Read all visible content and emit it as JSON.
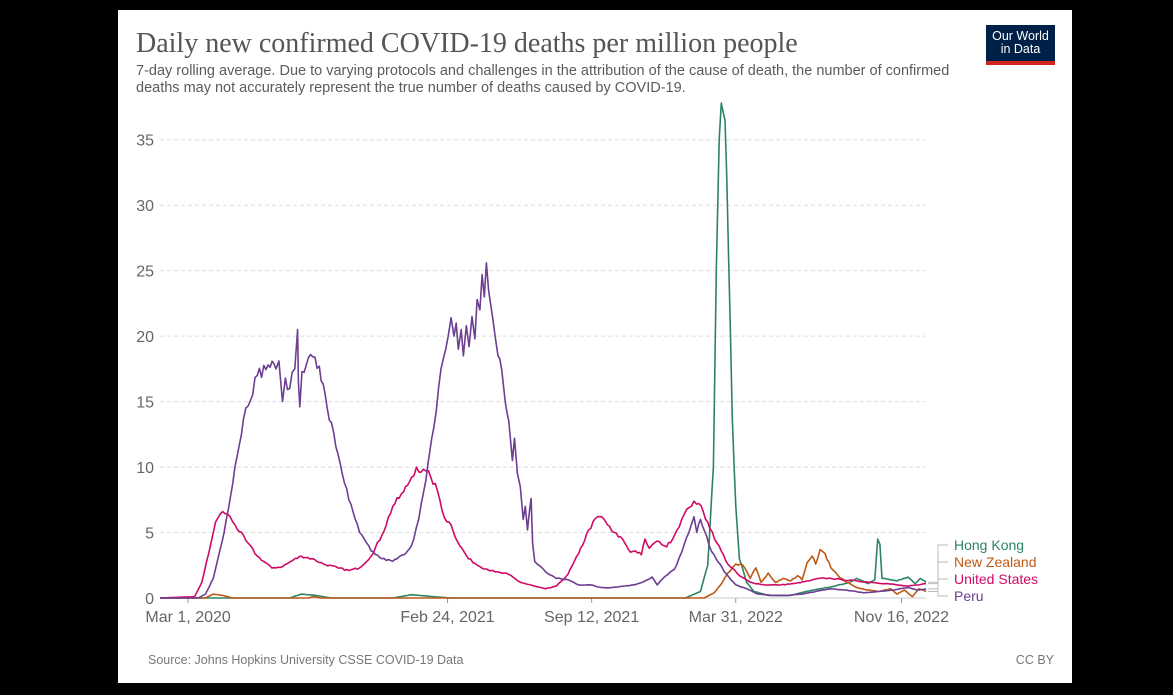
{
  "title": "Daily new confirmed COVID-19 deaths per million people",
  "subtitle": "7-day rolling average. Due to varying protocols and challenges in the attribution of the cause of death, the number of confirmed deaths may not accurately represent the true number of deaths caused by COVID-19.",
  "logo": {
    "line1": "Our World",
    "line2": "in Data",
    "bg_color": "#002147",
    "accent_color": "#ce261e"
  },
  "footer": {
    "source": "Source: Johns Hopkins University CSSE COVID-19 Data",
    "license": "CC BY"
  },
  "chart_data": {
    "type": "line",
    "title": "Daily new confirmed COVID-19 deaths per million people",
    "xlabel": "",
    "ylabel": "",
    "ylim": [
      0,
      37.5
    ],
    "xlim": [
      "2020-01-22",
      "2022-12-20"
    ],
    "y_ticks": [
      0,
      5,
      10,
      15,
      20,
      25,
      30,
      35
    ],
    "x_tick_labels": [
      "Mar 1, 2020",
      "Feb 24, 2021",
      "Sep 12, 2021",
      "Mar 31, 2022",
      "Nov 16, 2022"
    ],
    "x_tick_dates": [
      "2020-03-01",
      "2021-02-24",
      "2021-09-12",
      "2022-03-31",
      "2022-11-16"
    ],
    "grid": "horizontal dashed",
    "legend": "right, end-of-line labels",
    "series": [
      {
        "name": "Hong Kong",
        "color": "#2c8465",
        "points": [
          [
            "2020-01-22",
            0
          ],
          [
            "2020-07-20",
            0
          ],
          [
            "2020-08-05",
            0.3
          ],
          [
            "2020-08-25",
            0.2
          ],
          [
            "2020-09-15",
            0
          ],
          [
            "2020-12-10",
            0
          ],
          [
            "2021-01-05",
            0.25
          ],
          [
            "2021-02-05",
            0.1
          ],
          [
            "2021-03-01",
            0
          ],
          [
            "2022-01-20",
            0
          ],
          [
            "2022-02-10",
            0.5
          ],
          [
            "2022-02-20",
            2.5
          ],
          [
            "2022-02-28",
            10
          ],
          [
            "2022-03-04",
            25
          ],
          [
            "2022-03-08",
            35
          ],
          [
            "2022-03-11",
            37.8
          ],
          [
            "2022-03-16",
            36.5
          ],
          [
            "2022-03-21",
            26
          ],
          [
            "2022-03-26",
            14
          ],
          [
            "2022-03-31",
            7
          ],
          [
            "2022-04-05",
            3
          ],
          [
            "2022-04-15",
            1.2
          ],
          [
            "2022-04-25",
            0.5
          ],
          [
            "2022-05-15",
            0.2
          ],
          [
            "2022-06-15",
            0.2
          ],
          [
            "2022-07-15",
            0.6
          ],
          [
            "2022-08-15",
            0.9
          ],
          [
            "2022-09-05",
            1.2
          ],
          [
            "2022-09-15",
            1.5
          ],
          [
            "2022-10-01",
            1.1
          ],
          [
            "2022-10-10",
            1.4
          ],
          [
            "2022-10-14",
            4.5
          ],
          [
            "2022-10-17",
            4.1
          ],
          [
            "2022-10-20",
            1.5
          ],
          [
            "2022-11-10",
            1.3
          ],
          [
            "2022-11-25",
            1.6
          ],
          [
            "2022-12-05",
            1.1
          ],
          [
            "2022-12-12",
            1.5
          ],
          [
            "2022-12-20",
            1.2
          ]
        ]
      },
      {
        "name": "New Zealand",
        "color": "#be5915",
        "points": [
          [
            "2020-01-22",
            0
          ],
          [
            "2020-03-25",
            0
          ],
          [
            "2020-04-05",
            0.3
          ],
          [
            "2020-04-18",
            0.2
          ],
          [
            "2020-05-01",
            0
          ],
          [
            "2020-08-15",
            0
          ],
          [
            "2020-08-22",
            0.1
          ],
          [
            "2020-09-01",
            0
          ],
          [
            "2022-02-15",
            0
          ],
          [
            "2022-03-01",
            0.4
          ],
          [
            "2022-03-10",
            1.0
          ],
          [
            "2022-03-20",
            1.9
          ],
          [
            "2022-03-31",
            2.6
          ],
          [
            "2022-04-10",
            2.5
          ],
          [
            "2022-04-20",
            1.5
          ],
          [
            "2022-04-28",
            2.3
          ],
          [
            "2022-05-05",
            1.2
          ],
          [
            "2022-05-15",
            1.9
          ],
          [
            "2022-05-25",
            1.2
          ],
          [
            "2022-06-05",
            1.5
          ],
          [
            "2022-06-15",
            1.3
          ],
          [
            "2022-06-25",
            1.7
          ],
          [
            "2022-07-01",
            1.4
          ],
          [
            "2022-07-08",
            2.7
          ],
          [
            "2022-07-15",
            3.2
          ],
          [
            "2022-07-20",
            2.6
          ],
          [
            "2022-07-26",
            3.7
          ],
          [
            "2022-08-02",
            3.4
          ],
          [
            "2022-08-10",
            2.3
          ],
          [
            "2022-08-20",
            1.7
          ],
          [
            "2022-09-01",
            1.2
          ],
          [
            "2022-09-15",
            0.8
          ],
          [
            "2022-10-01",
            0.6
          ],
          [
            "2022-10-15",
            0.5
          ],
          [
            "2022-11-01",
            0.7
          ],
          [
            "2022-11-10",
            0.3
          ],
          [
            "2022-11-20",
            0.6
          ],
          [
            "2022-12-01",
            0.1
          ],
          [
            "2022-12-10",
            0.7
          ],
          [
            "2022-12-20",
            0.5
          ]
        ]
      },
      {
        "name": "United States",
        "color": "#cf0a66",
        "points": [
          [
            "2020-01-22",
            0
          ],
          [
            "2020-03-10",
            0.1
          ],
          [
            "2020-03-20",
            1.2
          ],
          [
            "2020-03-30",
            3.5
          ],
          [
            "2020-04-08",
            5.8
          ],
          [
            "2020-04-18",
            6.6
          ],
          [
            "2020-04-25",
            6.4
          ],
          [
            "2020-05-05",
            5.6
          ],
          [
            "2020-05-20",
            4.4
          ],
          [
            "2020-06-05",
            3.2
          ],
          [
            "2020-06-25",
            2.3
          ],
          [
            "2020-07-10",
            2.4
          ],
          [
            "2020-07-25",
            2.9
          ],
          [
            "2020-08-05",
            3.2
          ],
          [
            "2020-08-20",
            3.0
          ],
          [
            "2020-09-05",
            2.6
          ],
          [
            "2020-09-25",
            2.3
          ],
          [
            "2020-10-10",
            2.1
          ],
          [
            "2020-10-25",
            2.3
          ],
          [
            "2020-11-10",
            3.2
          ],
          [
            "2020-11-25",
            4.8
          ],
          [
            "2020-12-10",
            7.0
          ],
          [
            "2020-12-25",
            8.1
          ],
          [
            "2021-01-05",
            9.2
          ],
          [
            "2021-01-12",
            10.0
          ],
          [
            "2021-01-18",
            9.6
          ],
          [
            "2021-01-25",
            9.7
          ],
          [
            "2021-02-01",
            9.2
          ],
          [
            "2021-02-10",
            8.2
          ],
          [
            "2021-02-20",
            6.1
          ],
          [
            "2021-03-01",
            5.6
          ],
          [
            "2021-03-10",
            4.3
          ],
          [
            "2021-03-25",
            3.0
          ],
          [
            "2021-04-10",
            2.4
          ],
          [
            "2021-05-01",
            2.0
          ],
          [
            "2021-05-20",
            1.8
          ],
          [
            "2021-06-05",
            1.2
          ],
          [
            "2021-06-25",
            0.9
          ],
          [
            "2021-07-10",
            0.7
          ],
          [
            "2021-07-25",
            0.9
          ],
          [
            "2021-08-10",
            1.8
          ],
          [
            "2021-08-25",
            3.4
          ],
          [
            "2021-09-08",
            5.2
          ],
          [
            "2021-09-20",
            6.2
          ],
          [
            "2021-09-28",
            6.1
          ],
          [
            "2021-10-10",
            5.1
          ],
          [
            "2021-10-25",
            4.5
          ],
          [
            "2021-11-05",
            3.5
          ],
          [
            "2021-11-12",
            3.6
          ],
          [
            "2021-11-20",
            3.3
          ],
          [
            "2021-11-25",
            4.5
          ],
          [
            "2021-12-01",
            3.8
          ],
          [
            "2021-12-08",
            4.2
          ],
          [
            "2021-12-15",
            4.3
          ],
          [
            "2021-12-25",
            3.9
          ],
          [
            "2022-01-05",
            4.8
          ],
          [
            "2022-01-15",
            6.0
          ],
          [
            "2022-01-25",
            6.9
          ],
          [
            "2022-02-01",
            7.4
          ],
          [
            "2022-02-08",
            7.2
          ],
          [
            "2022-02-20",
            5.8
          ],
          [
            "2022-03-05",
            4.2
          ],
          [
            "2022-03-20",
            2.6
          ],
          [
            "2022-04-05",
            1.7
          ],
          [
            "2022-04-20",
            1.2
          ],
          [
            "2022-05-10",
            1.0
          ],
          [
            "2022-06-01",
            1.0
          ],
          [
            "2022-06-20",
            1.1
          ],
          [
            "2022-07-10",
            1.3
          ],
          [
            "2022-07-25",
            1.5
          ],
          [
            "2022-08-10",
            1.5
          ],
          [
            "2022-08-25",
            1.4
          ],
          [
            "2022-09-15",
            1.3
          ],
          [
            "2022-10-05",
            1.2
          ],
          [
            "2022-10-25",
            1.1
          ],
          [
            "2022-11-10",
            1.0
          ],
          [
            "2022-11-25",
            0.9
          ],
          [
            "2022-12-10",
            1.0
          ],
          [
            "2022-12-20",
            1.1
          ]
        ]
      },
      {
        "name": "Peru",
        "color": "#6d3e91",
        "points": [
          [
            "2020-01-22",
            0
          ],
          [
            "2020-03-15",
            0
          ],
          [
            "2020-03-25",
            0.3
          ],
          [
            "2020-04-05",
            1.5
          ],
          [
            "2020-04-20",
            5
          ],
          [
            "2020-05-05",
            10
          ],
          [
            "2020-05-20",
            14.5
          ],
          [
            "2020-06-05",
            17.0
          ],
          [
            "2020-06-20",
            17.8
          ],
          [
            "2020-07-01",
            17.5
          ],
          [
            "2020-07-05",
            18.1
          ],
          [
            "2020-07-08",
            16.2
          ],
          [
            "2020-07-10",
            15.0
          ],
          [
            "2020-07-14",
            16.8
          ],
          [
            "2020-07-20",
            16.0
          ],
          [
            "2020-07-27",
            17.5
          ],
          [
            "2020-07-31",
            20.5
          ],
          [
            "2020-08-01",
            16.5
          ],
          [
            "2020-08-03",
            14.6
          ],
          [
            "2020-08-06",
            17.3
          ],
          [
            "2020-08-12",
            17.8
          ],
          [
            "2020-08-18",
            18.6
          ],
          [
            "2020-08-24",
            18.4
          ],
          [
            "2020-08-30",
            17.7
          ],
          [
            "2020-09-10",
            14.5
          ],
          [
            "2020-09-25",
            11.0
          ],
          [
            "2020-10-10",
            7.5
          ],
          [
            "2020-10-25",
            5.0
          ],
          [
            "2020-11-10",
            3.6
          ],
          [
            "2020-11-25",
            3.0
          ],
          [
            "2020-12-10",
            2.8
          ],
          [
            "2020-12-25",
            3.3
          ],
          [
            "2021-01-05",
            4.0
          ],
          [
            "2021-01-15",
            6.0
          ],
          [
            "2021-01-25",
            9.0
          ],
          [
            "2021-02-05",
            13.0
          ],
          [
            "2021-02-15",
            17.5
          ],
          [
            "2021-02-25",
            20.0
          ],
          [
            "2021-03-01",
            21.4
          ],
          [
            "2021-03-05",
            20.0
          ],
          [
            "2021-03-08",
            21.0
          ],
          [
            "2021-03-11",
            19.0
          ],
          [
            "2021-03-15",
            20.5
          ],
          [
            "2021-03-18",
            18.5
          ],
          [
            "2021-03-22",
            20.8
          ],
          [
            "2021-03-26",
            19.2
          ],
          [
            "2021-03-30",
            21.5
          ],
          [
            "2021-04-03",
            19.8
          ],
          [
            "2021-04-06",
            22.8
          ],
          [
            "2021-04-10",
            22.0
          ],
          [
            "2021-04-13",
            24.7
          ],
          [
            "2021-04-16",
            23.0
          ],
          [
            "2021-04-19",
            25.6
          ],
          [
            "2021-04-22",
            23.5
          ],
          [
            "2021-04-26",
            22.0
          ],
          [
            "2021-05-01",
            20.0
          ],
          [
            "2021-05-05",
            18.5
          ],
          [
            "2021-05-10",
            17.5
          ],
          [
            "2021-05-15",
            15.0
          ],
          [
            "2021-05-20",
            13.5
          ],
          [
            "2021-05-25",
            10.5
          ],
          [
            "2021-05-28",
            12.2
          ],
          [
            "2021-06-01",
            9.5
          ],
          [
            "2021-06-05",
            8.5
          ],
          [
            "2021-06-09",
            6.0
          ],
          [
            "2021-06-12",
            7.0
          ],
          [
            "2021-06-15",
            5.2
          ],
          [
            "2021-06-18",
            6.8
          ],
          [
            "2021-06-20",
            7.6
          ],
          [
            "2021-06-22",
            4.2
          ],
          [
            "2021-06-25",
            2.8
          ],
          [
            "2021-07-01",
            2.5
          ],
          [
            "2021-07-10",
            2.0
          ],
          [
            "2021-07-25",
            1.5
          ],
          [
            "2021-08-10",
            1.4
          ],
          [
            "2021-08-25",
            1.0
          ],
          [
            "2021-09-10",
            1.0
          ],
          [
            "2021-09-25",
            0.8
          ],
          [
            "2021-10-10",
            0.8
          ],
          [
            "2021-10-25",
            0.9
          ],
          [
            "2021-11-10",
            1.0
          ],
          [
            "2021-11-25",
            1.3
          ],
          [
            "2021-12-05",
            1.6
          ],
          [
            "2021-12-12",
            1.0
          ],
          [
            "2021-12-20",
            1.5
          ],
          [
            "2022-01-05",
            2.2
          ],
          [
            "2022-01-15",
            3.5
          ],
          [
            "2022-01-25",
            5.0
          ],
          [
            "2022-02-01",
            6.2
          ],
          [
            "2022-02-05",
            5.0
          ],
          [
            "2022-02-10",
            6.0
          ],
          [
            "2022-02-15",
            5.2
          ],
          [
            "2022-02-22",
            4.0
          ],
          [
            "2022-03-01",
            3.3
          ],
          [
            "2022-03-15",
            2.0
          ],
          [
            "2022-03-31",
            1.0
          ],
          [
            "2022-04-15",
            0.7
          ],
          [
            "2022-05-01",
            0.3
          ],
          [
            "2022-05-20",
            0.2
          ],
          [
            "2022-06-10",
            0.2
          ],
          [
            "2022-07-01",
            0.3
          ],
          [
            "2022-07-20",
            0.5
          ],
          [
            "2022-08-10",
            0.7
          ],
          [
            "2022-09-01",
            0.6
          ],
          [
            "2022-09-25",
            0.4
          ],
          [
            "2022-10-15",
            0.5
          ],
          [
            "2022-11-05",
            0.6
          ],
          [
            "2022-11-25",
            0.8
          ],
          [
            "2022-12-10",
            0.6
          ],
          [
            "2022-12-20",
            0.7
          ]
        ]
      }
    ]
  }
}
